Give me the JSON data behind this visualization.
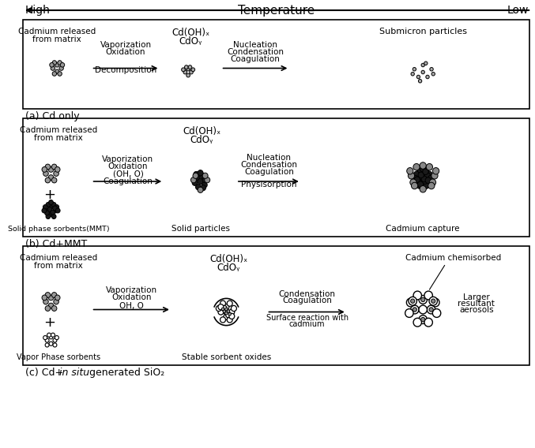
{
  "title_temp": "Temperature",
  "title_high": "High",
  "title_low": "Low",
  "panel_a_label": "(a) Cd only",
  "panel_b_label": "(b) Cd+MMT",
  "panel_c_label": "(c) Cd+",
  "panel_c_italic": "in situ",
  "panel_c_rest": " generated SiO₂",
  "bg_color": "#ffffff",
  "box_color": "#000000",
  "gray_dark": "#888888",
  "gray_light": "#aaaaaa",
  "gray_med": "#999999",
  "black": "#000000",
  "white": "#ffffff"
}
